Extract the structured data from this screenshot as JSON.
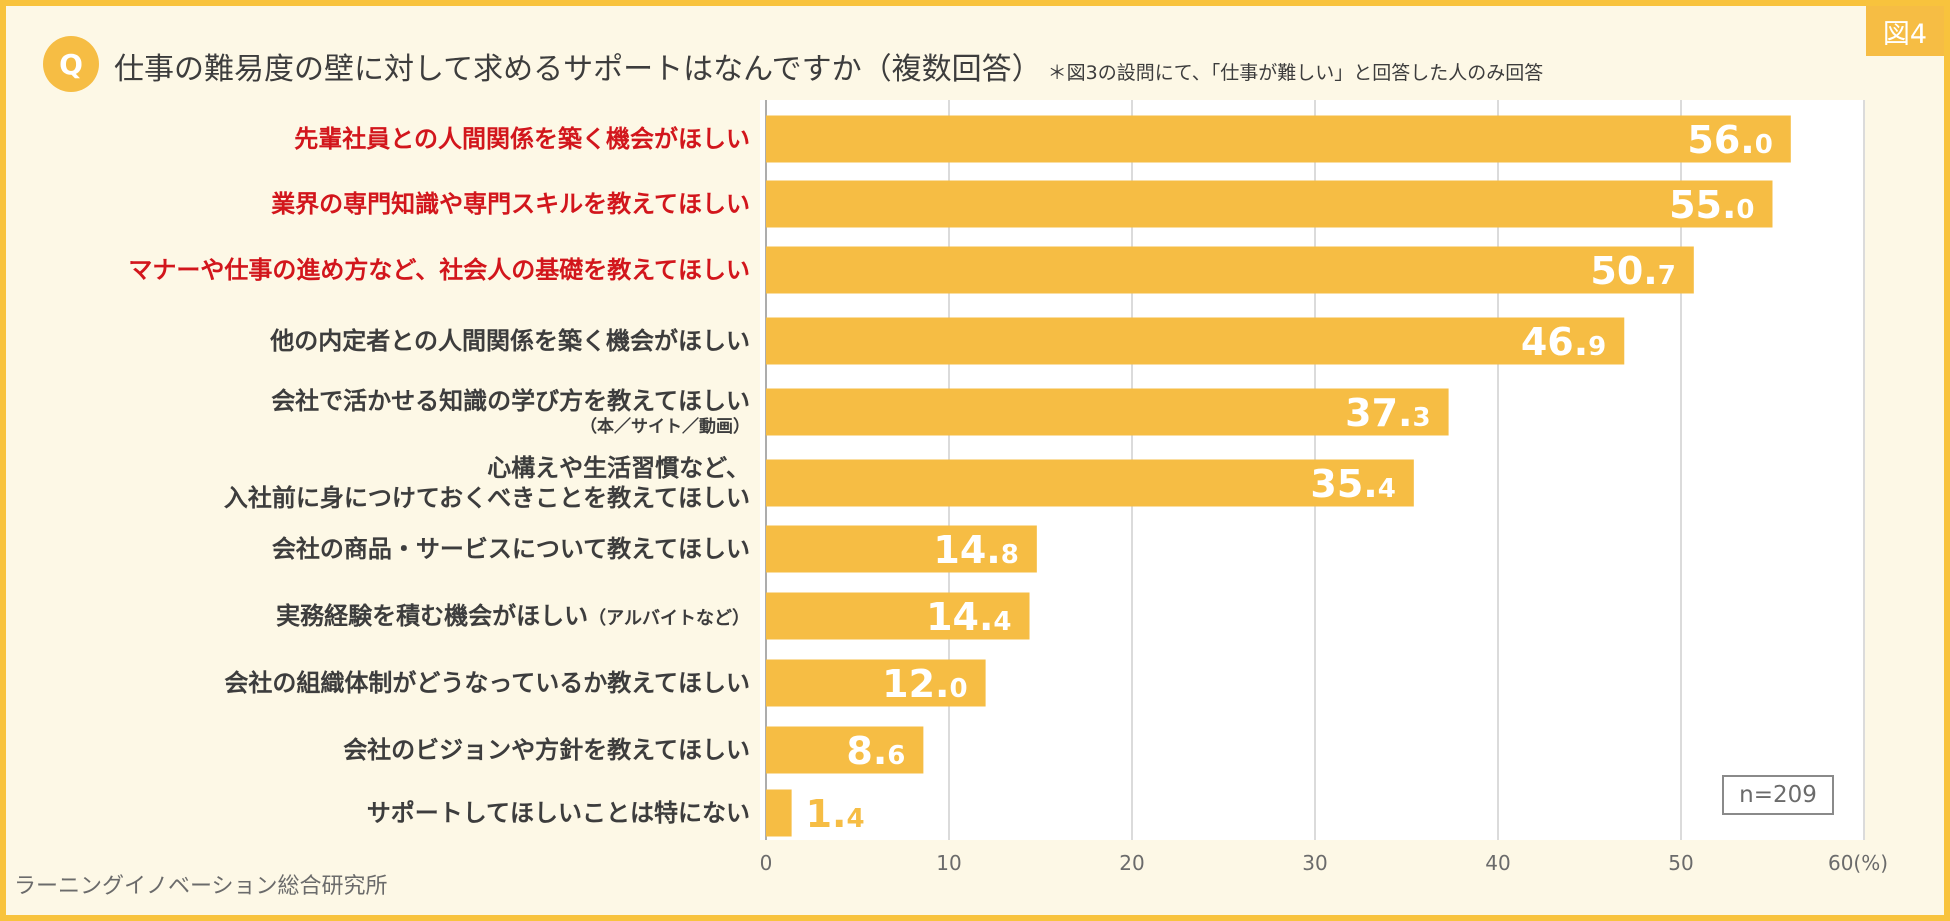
{
  "figure_tag": "図4",
  "q_badge": "Q",
  "title": "仕事の難易度の壁に対して求めるサポートはなんですか（複数回答）",
  "title_note": "＊図3の設問にて、「仕事が難しい」と回答した人のみ回答",
  "sample_size": "n=209",
  "source": "ラーニングイノベーション総合研究所",
  "colors": {
    "bar": "#f6bd44",
    "highlight_text": "#d2161c",
    "value_text": "#ffffff",
    "grid": "#cfcfcf"
  },
  "chart_data": {
    "type": "bar",
    "orientation": "horizontal",
    "xlim": [
      0,
      60
    ],
    "x_ticks": [
      "0",
      "10",
      "20",
      "30",
      "40",
      "50",
      "60(%)"
    ],
    "grid": true,
    "categories": [
      {
        "label": "先輩社員との人間関係を築く機会がほしい",
        "value": 56.0,
        "highlight": true
      },
      {
        "label": "業界の専門知識や専門スキルを教えてほしい",
        "value": 55.0,
        "highlight": true
      },
      {
        "label": "マナーや仕事の進め方など、社会人の基礎を教えてほしい",
        "value": 50.7,
        "highlight": true
      },
      {
        "label": "他の内定者との人間関係を築く機会がほしい",
        "value": 46.9,
        "highlight": false
      },
      {
        "label": "会社で活かせる知識の学び方を教えてほしい",
        "sublabel": "（本／サイト／動画）",
        "value": 37.3,
        "highlight": false
      },
      {
        "label": "心構えや生活習慣など、",
        "label2": "入社前に身につけておくべきことを教えてほしい",
        "value": 35.4,
        "highlight": false
      },
      {
        "label": "会社の商品・サービスについて教えてほしい",
        "value": 14.8,
        "highlight": false
      },
      {
        "label": "実務経験を積む機会がほしい",
        "suffix": "（アルバイトなど）",
        "value": 14.4,
        "highlight": false
      },
      {
        "label": "会社の組織体制がどうなっているか教えてほしい",
        "value": 12.0,
        "highlight": false
      },
      {
        "label": "会社のビジョンや方針を教えてほしい",
        "value": 8.6,
        "highlight": false
      },
      {
        "label": "サポートしてほしいことは特にない",
        "value": 1.4,
        "highlight": false
      }
    ],
    "unit": "%"
  }
}
